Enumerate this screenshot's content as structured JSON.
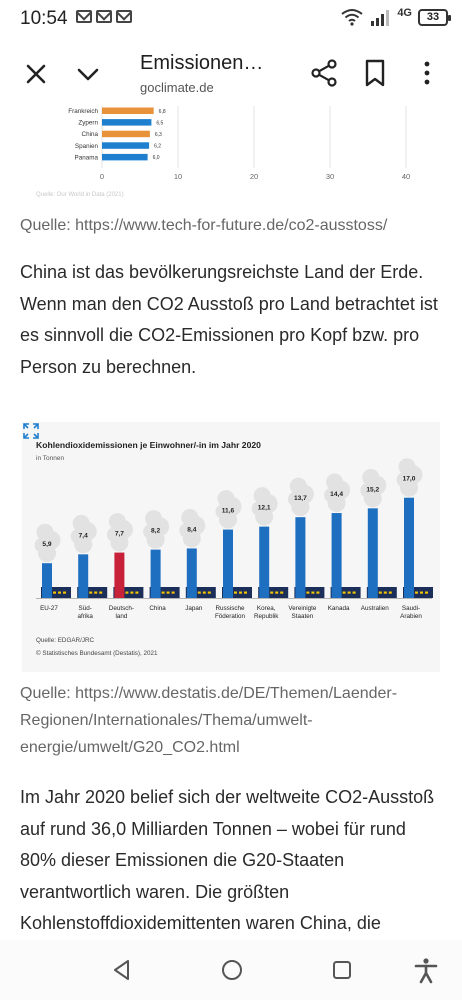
{
  "status_bar": {
    "time": "10:54",
    "notification_icons": [
      "mail-icon",
      "mail-icon",
      "mail-icon"
    ],
    "network_type": "4G",
    "battery": "33"
  },
  "toolbar": {
    "title": "Emissionen…",
    "url": "goclimate.de"
  },
  "fragment_chart": {
    "type": "bar",
    "categories": [
      "Frankreich",
      "Zypern",
      "China",
      "Spanien",
      "Panama"
    ],
    "values": [
      6.8,
      6.5,
      6.3,
      6.2,
      6.0
    ],
    "value_labels": [
      "6,8",
      "6,5",
      "6,3",
      "6,2",
      "6,0"
    ],
    "bar_colors": [
      "#e8923a",
      "#1f7fcf",
      "#e8923a",
      "#1f7fcf",
      "#1f7fcf"
    ],
    "x_ticks": [
      "0",
      "10",
      "20",
      "30",
      "40"
    ],
    "source": "Quelle: Our World in Data (2021)"
  },
  "source_1": "Quelle: https://www.tech-for-future.de/co2-ausstoss/",
  "paragraph_1": "China ist das bevölkerungsreichste Land der Erde. Wenn man den CO2 Ausstoß pro Land betrachtet ist es sinnvoll die CO2-Emissionen pro Kopf bzw. pro Person zu berechnen.",
  "chart_data": {
    "type": "bar",
    "title": "Kohlendioxidemissionen je Einwohner/-in im Jahr 2020",
    "subtitle": "in Tonnen",
    "categories": [
      "EU-27",
      "Süd-\nafrika",
      "Deutsch-\nland",
      "China",
      "Japan",
      "Russische\nFöderation",
      "Korea,\nRepublik",
      "Vereinigte\nStaaten",
      "Kanada",
      "Australien",
      "Saudi-\nArabien"
    ],
    "values": [
      5.9,
      7.4,
      7.7,
      8.2,
      8.4,
      11.6,
      12.1,
      13.7,
      14.4,
      15.2,
      17.0
    ],
    "value_labels": [
      "5,9",
      "7,4",
      "7,7",
      "8,2",
      "8,4",
      "11,6",
      "12,1",
      "13,7",
      "14,4",
      "15,2",
      "17,0"
    ],
    "highlight_index": 2,
    "colors": {
      "default": "#1f6fc1",
      "highlight": "#c8223a",
      "factory": "#1b2f5a",
      "window": "#f2c300",
      "smoke": "#e2e2e2"
    },
    "source": "Quelle: EDGAR/JRC",
    "copyright": "© Statistisches Bundesamt (Destatis), 2021"
  },
  "source_2": "Quelle: https://www.destatis.de/DE/Themen/Laender-Regionen/Internationales/Thema/umwelt-energie/umwelt/G20_CO2.html",
  "paragraph_2": "Im Jahr 2020 belief sich der weltweite CO2-Ausstoß auf rund 36,0 Milliarden Tonnen – wobei für rund 80% dieser Emissionen die G20-Staaten verantwortlich waren. Die größten Kohlenstoffdioxidemittenten waren China, die",
  "navbar": {
    "items": [
      "back-icon",
      "home-icon",
      "recents-icon",
      "accessibility-icon"
    ]
  }
}
